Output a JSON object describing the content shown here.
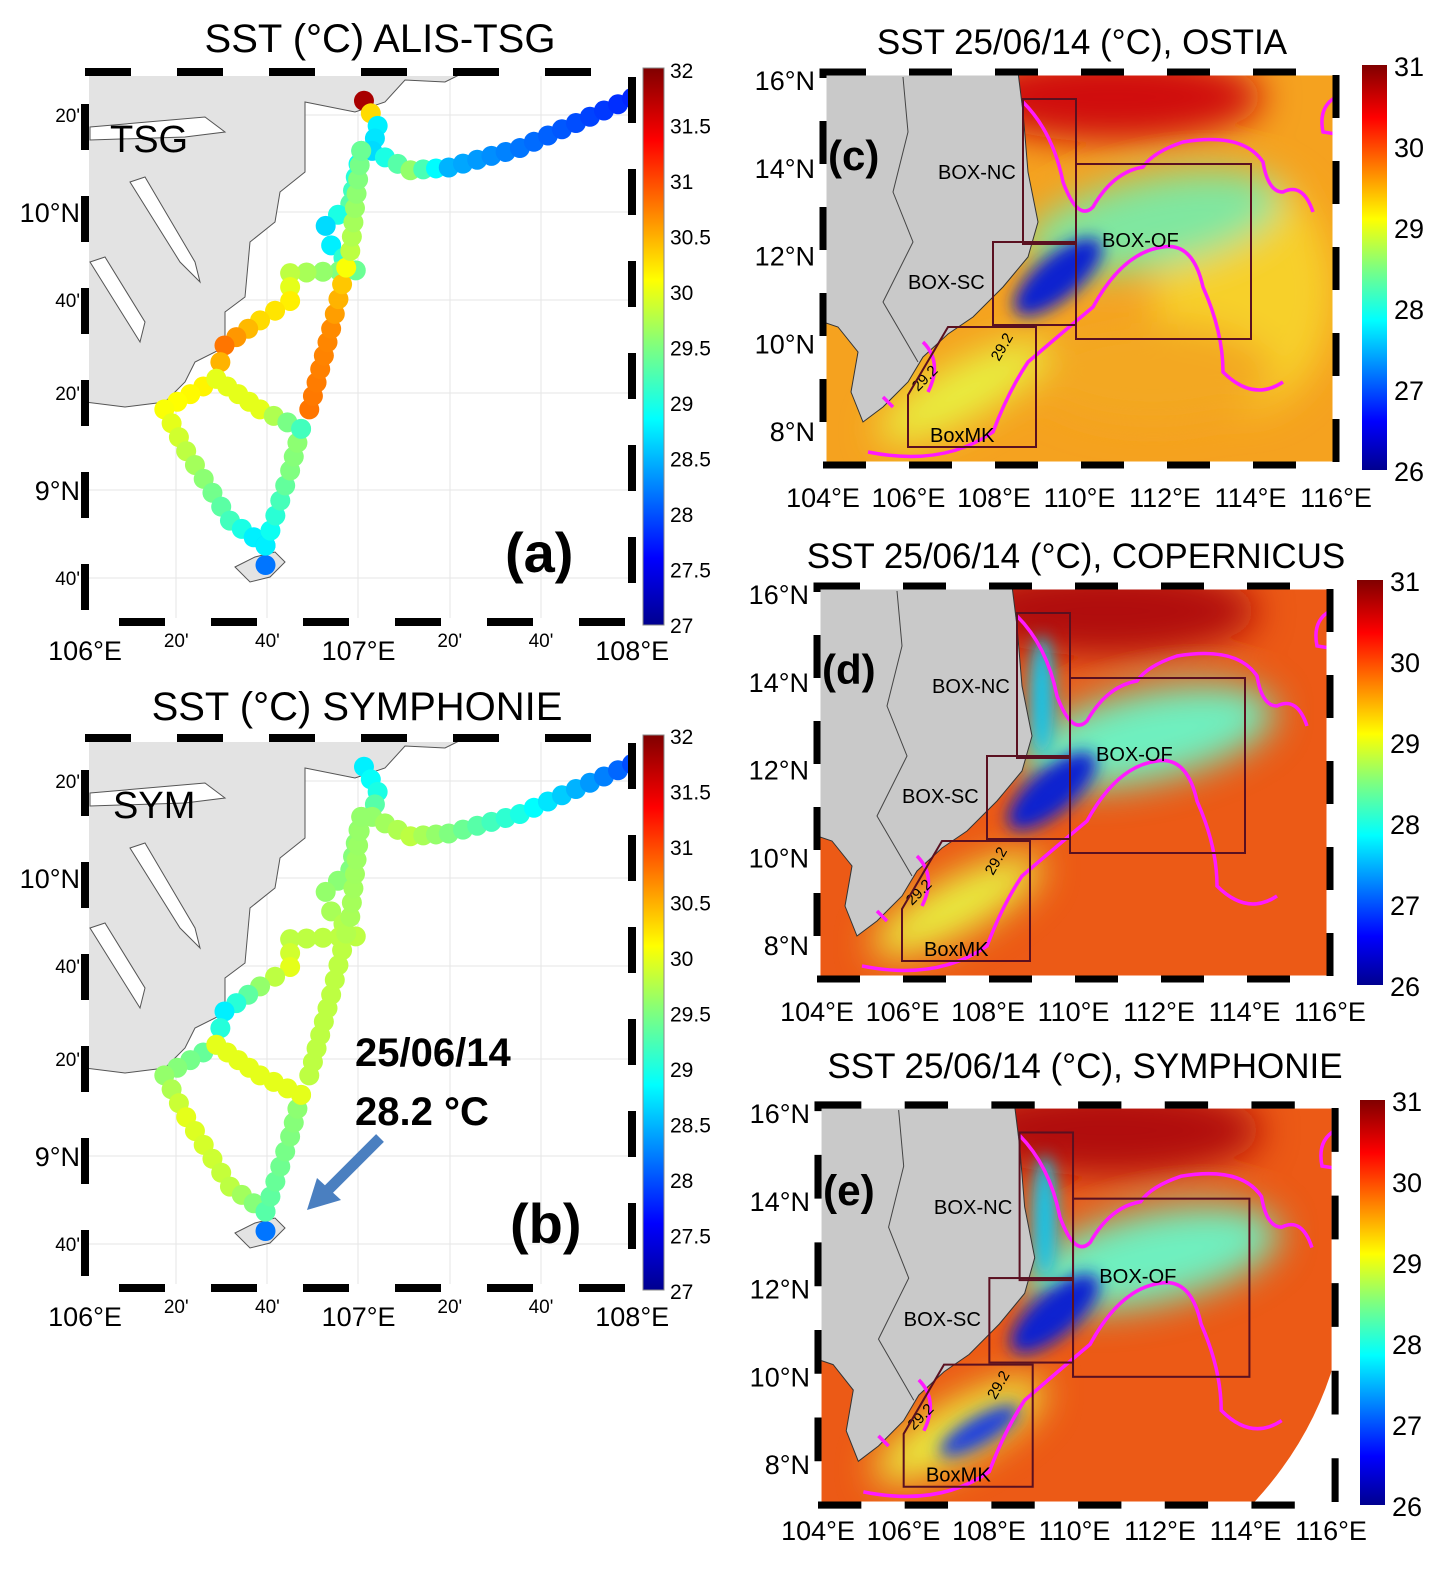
{
  "panels": {
    "a": {
      "title": "SST (°C) ALIS-TSG",
      "letter": "(a)",
      "tag": "TSG",
      "lon_ticks": [
        "106°E",
        "20'",
        "40'",
        "107°E",
        "20'",
        "40'",
        "108°E"
      ],
      "lat_ticks": [
        "20'",
        "10°N",
        "40'",
        "20'",
        "9°N",
        "40'"
      ],
      "colorbar": [
        "32",
        "31.5",
        "31",
        "30.5",
        "30",
        "29.5",
        "29",
        "28.5",
        "28",
        "27.5",
        "27"
      ]
    },
    "b": {
      "title": "SST (°C) SYMPHONIE",
      "letter": "(b)",
      "tag": "SYM",
      "annotation_date": "25/06/14",
      "annotation_value": "28.2 °C",
      "lon_ticks": [
        "106°E",
        "20'",
        "40'",
        "107°E",
        "20'",
        "40'",
        "108°E"
      ],
      "lat_ticks": [
        "20'",
        "10°N",
        "40'",
        "20'",
        "9°N",
        "40'"
      ],
      "colorbar": [
        "32",
        "31.5",
        "31",
        "30.5",
        "30",
        "29.5",
        "29",
        "28.5",
        "28",
        "27.5",
        "27"
      ]
    },
    "c": {
      "title": "SST 25/06/14 (°C), OSTIA",
      "letter": "(c)"
    },
    "d": {
      "title": "SST 25/06/14 (°C), COPERNICUS",
      "letter": "(d)"
    },
    "e": {
      "title": "SST 25/06/14 (°C), SYMPHONIE",
      "letter": "(e)"
    }
  },
  "regional": {
    "lon_ticks": [
      "104°E",
      "106°E",
      "108°E",
      "110°E",
      "112°E",
      "114°E",
      "116°E"
    ],
    "lat_ticks": [
      "16°N",
      "14°N",
      "12°N",
      "10°N",
      "8°N"
    ],
    "colorbar": [
      "31",
      "30",
      "29",
      "28",
      "27",
      "26"
    ],
    "boxes": {
      "nc": "BOX-NC",
      "sc": "BOX-SC",
      "of": "BOX-OF",
      "mk": "BoxMK"
    },
    "contour_label": "29.2"
  },
  "chart_data": {
    "type": "scatter",
    "colorscale": "jet",
    "colorbar_range_tracks": [
      27,
      32
    ],
    "colorbar_range_maps": [
      26,
      31
    ],
    "lon_range_tracks": [
      106,
      108
    ],
    "lat_range_tracks": [
      8.52,
      10.5
    ],
    "tracks_tsg": [
      [
        [
          107.02,
          10.4,
          31.8
        ],
        [
          107.07,
          10.31,
          28.8
        ],
        [
          107.05,
          10.22,
          28.7
        ],
        [
          107.19,
          10.15,
          29.6
        ],
        [
          107.33,
          10.16,
          28.5
        ],
        [
          107.59,
          10.23,
          28.2
        ],
        [
          108.0,
          10.41,
          27.8
        ]
      ],
      [
        [
          107.01,
          10.22,
          28.8
        ],
        [
          106.97,
          10.03,
          29.3
        ],
        [
          106.88,
          9.95,
          28.7
        ],
        [
          106.9,
          9.88,
          28.8
        ],
        [
          106.99,
          9.79,
          29.4
        ],
        [
          106.75,
          9.78,
          29.8
        ],
        [
          106.75,
          9.68,
          30.2
        ],
        [
          106.64,
          9.61,
          30.3
        ],
        [
          106.51,
          9.52,
          30.8
        ],
        [
          106.48,
          9.4,
          30.2
        ],
        [
          106.29,
          9.29,
          30.1
        ],
        [
          106.37,
          9.14,
          29.8
        ],
        [
          106.53,
          8.89,
          29.2
        ],
        [
          106.66,
          8.8,
          28.6
        ],
        [
          106.66,
          8.73,
          28.2
        ]
      ],
      [
        [
          106.66,
          8.8,
          28.8
        ],
        [
          106.75,
          9.07,
          29.5
        ],
        [
          106.79,
          9.22,
          29.6
        ],
        [
          106.82,
          9.29,
          30.8
        ],
        [
          106.9,
          9.58,
          30.7
        ],
        [
          106.94,
          9.74,
          30.4
        ],
        [
          106.97,
          9.86,
          29.8
        ],
        [
          107.01,
          10.22,
          29.4
        ]
      ],
      [
        [
          106.48,
          9.4,
          30.0
        ],
        [
          106.64,
          9.29,
          30.0
        ],
        [
          106.79,
          9.22,
          29.2
        ]
      ]
    ],
    "tracks_sym": [
      [
        [
          107.02,
          10.4,
          28.8
        ],
        [
          107.07,
          10.31,
          29.0
        ],
        [
          107.05,
          10.22,
          29.6
        ],
        [
          107.19,
          10.15,
          29.8
        ],
        [
          107.33,
          10.16,
          29.5
        ],
        [
          107.59,
          10.23,
          29.0
        ],
        [
          108.0,
          10.41,
          28.0
        ]
      ],
      [
        [
          107.01,
          10.22,
          29.6
        ],
        [
          106.97,
          10.03,
          29.5
        ],
        [
          106.88,
          9.95,
          29.6
        ],
        [
          106.9,
          9.88,
          29.7
        ],
        [
          106.99,
          9.79,
          29.8
        ],
        [
          106.75,
          9.78,
          29.8
        ],
        [
          106.75,
          9.68,
          30.0
        ],
        [
          106.64,
          9.61,
          29.6
        ],
        [
          106.51,
          9.52,
          28.8
        ],
        [
          106.48,
          9.4,
          29.3
        ],
        [
          106.29,
          9.29,
          29.6
        ],
        [
          106.37,
          9.14,
          30.0
        ],
        [
          106.53,
          8.89,
          29.8
        ],
        [
          106.66,
          8.8,
          29.4
        ],
        [
          106.66,
          8.73,
          28.2
        ]
      ],
      [
        [
          106.66,
          8.8,
          29.3
        ],
        [
          106.75,
          9.07,
          29.5
        ],
        [
          106.79,
          9.22,
          29.6
        ],
        [
          106.82,
          9.29,
          29.8
        ],
        [
          106.9,
          9.58,
          29.8
        ],
        [
          106.94,
          9.74,
          29.8
        ],
        [
          106.97,
          9.86,
          29.7
        ],
        [
          107.01,
          10.22,
          29.6
        ]
      ],
      [
        [
          106.48,
          9.4,
          30.0
        ],
        [
          106.64,
          9.29,
          30.0
        ],
        [
          106.79,
          9.22,
          30.0
        ]
      ]
    ]
  }
}
